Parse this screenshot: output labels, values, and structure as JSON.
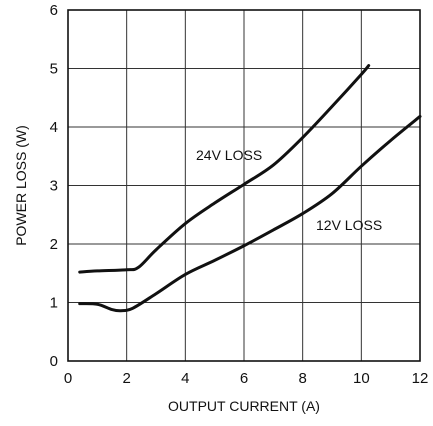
{
  "chart_data": {
    "type": "line",
    "title": "",
    "xlabel": "OUTPUT CURRENT (A)",
    "ylabel": "POWER LOSS (W)",
    "xlim": [
      0,
      12
    ],
    "ylim": [
      0,
      6
    ],
    "xticks": [
      0,
      2,
      4,
      6,
      8,
      10,
      12
    ],
    "yticks": [
      0,
      1,
      2,
      3,
      4,
      5,
      6
    ],
    "grid": true,
    "series": [
      {
        "name": "24V LOSS",
        "points": [
          [
            0.4,
            1.52
          ],
          [
            1.0,
            1.54
          ],
          [
            2.0,
            1.56
          ],
          [
            2.4,
            1.6
          ],
          [
            3.0,
            1.9
          ],
          [
            4.0,
            2.35
          ],
          [
            5.0,
            2.7
          ],
          [
            6.0,
            3.02
          ],
          [
            7.0,
            3.35
          ],
          [
            8.0,
            3.82
          ],
          [
            9.0,
            4.35
          ],
          [
            10.0,
            4.9
          ],
          [
            10.25,
            5.05
          ]
        ]
      },
      {
        "name": "12V LOSS",
        "points": [
          [
            0.4,
            0.98
          ],
          [
            1.0,
            0.97
          ],
          [
            1.5,
            0.88
          ],
          [
            1.8,
            0.86
          ],
          [
            2.2,
            0.9
          ],
          [
            3.0,
            1.15
          ],
          [
            4.0,
            1.48
          ],
          [
            5.0,
            1.72
          ],
          [
            6.0,
            1.97
          ],
          [
            7.0,
            2.24
          ],
          [
            8.0,
            2.52
          ],
          [
            9.0,
            2.86
          ],
          [
            10.0,
            3.33
          ],
          [
            11.0,
            3.77
          ],
          [
            12.0,
            4.18
          ]
        ]
      }
    ]
  }
}
